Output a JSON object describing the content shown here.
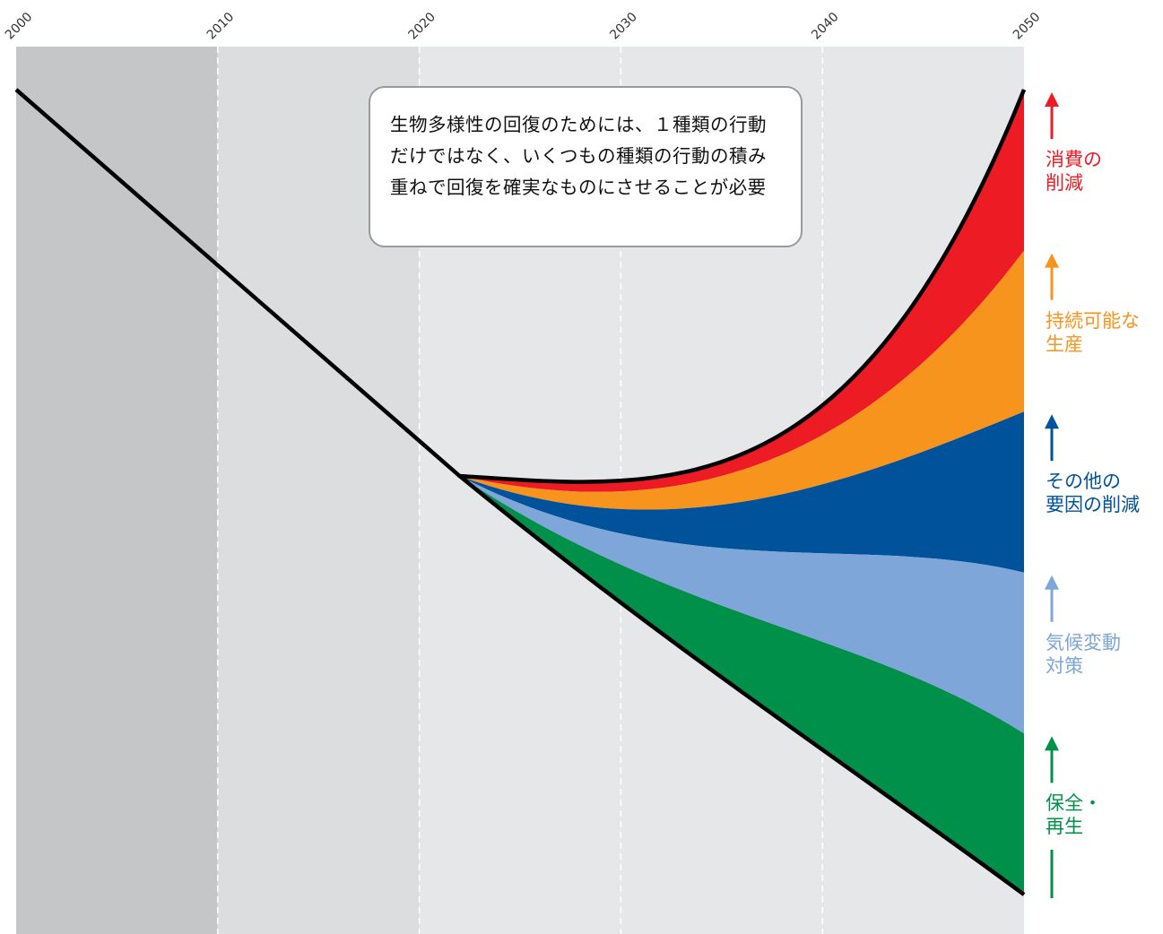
{
  "callout_text": "生物多様性の回復のためには、１種類の行動だけではなく、いくつもの種類の行動の積み重ねで回復を確実なものにさせることが必要",
  "chart_data": {
    "type": "area",
    "x_ticks": [
      2000,
      2010,
      2020,
      2030,
      2040,
      2050
    ],
    "xlim": [
      2000,
      2050
    ],
    "ylabel": "",
    "xlabel": "",
    "background_bands": [
      {
        "from": 2000,
        "to": 2010,
        "color": "#c5c6c8"
      },
      {
        "from": 2010,
        "to": 2020,
        "color": "#dcdddf"
      },
      {
        "from": 2020,
        "to": 2050,
        "color": "#e6e7e8"
      }
    ],
    "baseline_trend": [
      [
        2000,
        100
      ],
      [
        2022,
        52
      ]
    ],
    "fan_start": [
      2022,
      52
    ],
    "endpoints_2050": {
      "top": 100,
      "bottom": 0
    },
    "series": [
      {
        "name": "消費の\n削減",
        "color": "#ed1c24",
        "label_color": "#ed1c24",
        "upper_2050": 100,
        "lower_2050": 80
      },
      {
        "name": "持続可能な\n生産",
        "color": "#f7941d",
        "label_color": "#f7941d",
        "upper_2050": 80,
        "lower_2050": 60
      },
      {
        "name": "その他の\n要因の削減",
        "color": "#00529b",
        "label_color": "#00529b",
        "upper_2050": 60,
        "lower_2050": 40
      },
      {
        "name": "気候変動\n対策",
        "color": "#7ea6d8",
        "label_color": "#7ea6d8",
        "upper_2050": 40,
        "lower_2050": 20
      },
      {
        "name": "保全・\n再生",
        "color": "#00904a",
        "label_color": "#00904a",
        "upper_2050": 20,
        "lower_2050": 0
      }
    ]
  }
}
